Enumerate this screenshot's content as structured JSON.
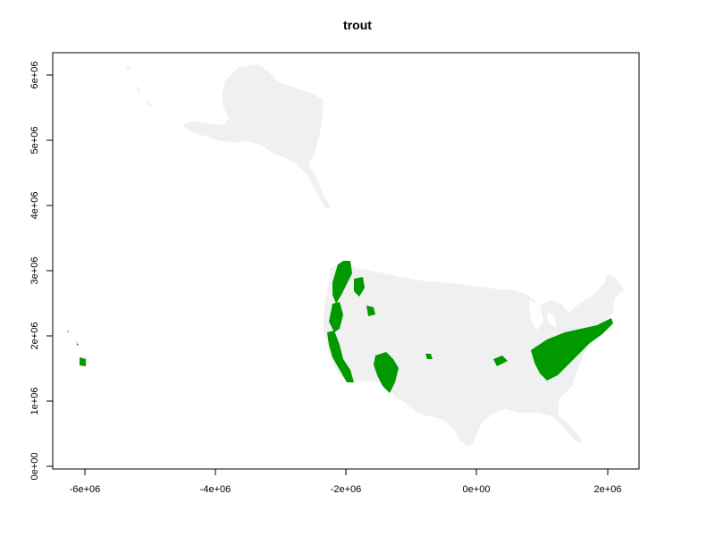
{
  "title": "trout",
  "map": {
    "land_color": "#f0f0f0",
    "habitat_color": "#009900",
    "regions": [
      "alaska",
      "conterminous-us",
      "hawaii"
    ]
  },
  "axes": {
    "x_ticks": [
      "-6e+06",
      "-4e+06",
      "-2e+06",
      "0e+00",
      "2e+06"
    ],
    "y_ticks": [
      "0e+00",
      "1e+06",
      "2e+06",
      "3e+06",
      "4e+06",
      "5e+06",
      "6e+06"
    ],
    "x_range": [
      -6500000,
      2500000
    ],
    "y_range": [
      -100000,
      6300000
    ]
  }
}
